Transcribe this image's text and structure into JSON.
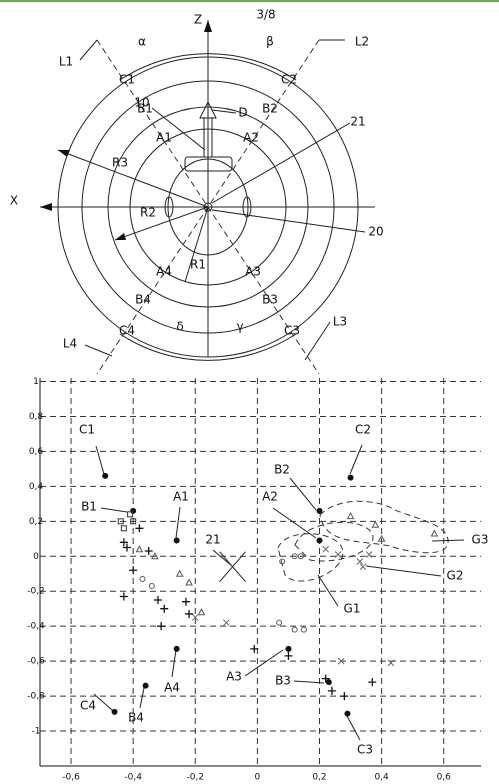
{
  "header": {
    "page": "3/8"
  },
  "diagram": {
    "labels": {
      "z": "Z",
      "x": "X",
      "alpha": "α",
      "beta": "β",
      "gamma": "γ",
      "delta": "δ",
      "l1": "L1",
      "l2": "L2",
      "l3": "L3",
      "l4": "L4",
      "c1": "C1",
      "c2": "C2",
      "c3": "C3",
      "c4": "C4",
      "b1": "B1",
      "b2": "B2",
      "b3": "B3",
      "b4": "B4",
      "a1": "A1",
      "a2": "A2",
      "a3": "A3",
      "a4": "A4",
      "r1": "R1",
      "r2": "R2",
      "r3": "R3",
      "d": "D",
      "ref10": "10",
      "ref20": "20",
      "ref21": "21"
    }
  },
  "chart_data": {
    "type": "scatter",
    "xlim": [
      -0.7,
      0.72
    ],
    "ylim": [
      -1.2,
      1.02
    ],
    "grid": true,
    "xticks": [
      {
        "value": -0.6,
        "label": "-0,6"
      },
      {
        "value": -0.4,
        "label": "-0,4"
      },
      {
        "value": -0.2,
        "label": "-0,2"
      },
      0,
      {
        "value": 0.2,
        "label": "0,2"
      },
      {
        "value": 0.4,
        "label": "0,4"
      },
      {
        "value": 0.6,
        "label": "0,6"
      }
    ],
    "yticks": [
      1,
      {
        "value": 0.8,
        "label": "0,8"
      },
      {
        "value": 0.6,
        "label": "0,6"
      },
      {
        "value": 0.4,
        "label": "0,4"
      },
      {
        "value": 0.2,
        "label": "0,2"
      },
      0,
      {
        "value": -0.2,
        "label": "-0,2"
      },
      {
        "value": -0.4,
        "label": "-0,4"
      },
      {
        "value": -0.6,
        "label": "-0,6"
      },
      {
        "value": -0.8,
        "label": "-0,8"
      },
      -1
    ],
    "series": [
      {
        "marker": "dot",
        "color": "#111",
        "x": [
          -0.49,
          0.3,
          0.2,
          -0.26,
          0.2,
          -0.26,
          0.1,
          0.23,
          0.29,
          -0.46,
          -0.36,
          -0.4
        ],
        "y": [
          0.46,
          0.45,
          0.26,
          0.09,
          0.09,
          -0.53,
          -0.53,
          -0.72,
          -0.9,
          -0.89,
          -0.74,
          0.26
        ]
      },
      {
        "marker": "plus",
        "color": "#111",
        "x": [
          -0.38,
          -0.43,
          -0.35,
          -0.42,
          -0.4,
          -0.43,
          -0.32,
          -0.3,
          -0.31,
          -0.23,
          -0.22,
          -0.01,
          0.1,
          0.22,
          0.24,
          0.28,
          0.37
        ],
        "y": [
          0.16,
          0.08,
          0.03,
          0.05,
          -0.08,
          -0.23,
          -0.25,
          -0.3,
          -0.4,
          -0.26,
          -0.33,
          -0.53,
          -0.57,
          -0.7,
          -0.77,
          -0.8,
          -0.72
        ]
      },
      {
        "marker": "square",
        "color": "#333",
        "x": [
          -0.41,
          -0.44,
          -0.43,
          -0.4
        ],
        "y": [
          0.24,
          0.2,
          0.16,
          0.2
        ]
      },
      {
        "marker": "triangle",
        "color": "#555",
        "x": [
          -0.38,
          -0.33,
          -0.25,
          -0.22,
          -0.18,
          0.3,
          0.38,
          0.57,
          0.4
        ],
        "y": [
          0.04,
          0.0,
          -0.1,
          -0.15,
          -0.32,
          0.23,
          0.18,
          0.13,
          0.1
        ]
      },
      {
        "marker": "circle",
        "color": "#555",
        "x": [
          -0.37,
          -0.34,
          0.07,
          0.12,
          0.15,
          0.12,
          0.08,
          0.14
        ],
        "y": [
          -0.13,
          -0.17,
          -0.38,
          -0.42,
          -0.42,
          0.0,
          -0.03,
          0.0
        ]
      },
      {
        "marker": "cross",
        "color": "#666",
        "x": [
          -0.2,
          -0.1,
          0.22,
          0.33,
          0.36,
          0.26,
          0.34,
          0.27,
          0.43
        ],
        "y": [
          -0.35,
          -0.38,
          0.04,
          -0.03,
          0.01,
          0.01,
          -0.06,
          -0.6,
          -0.61
        ]
      },
      {
        "marker": "bigcross",
        "color": "#333",
        "x": [
          -0.08
        ],
        "y": [
          -0.06
        ]
      }
    ],
    "annotations": {
      "c1": "C1",
      "c2": "C2",
      "b1": "B1",
      "b2": "B2",
      "a1": "A1",
      "a2": "A2",
      "ref21": "21",
      "a3": "A3",
      "a4": "A4",
      "b3": "B3",
      "b4": "B4",
      "c3": "C3",
      "c4": "C4",
      "g1": "G1",
      "g2": "G2",
      "g3": "G3"
    }
  }
}
